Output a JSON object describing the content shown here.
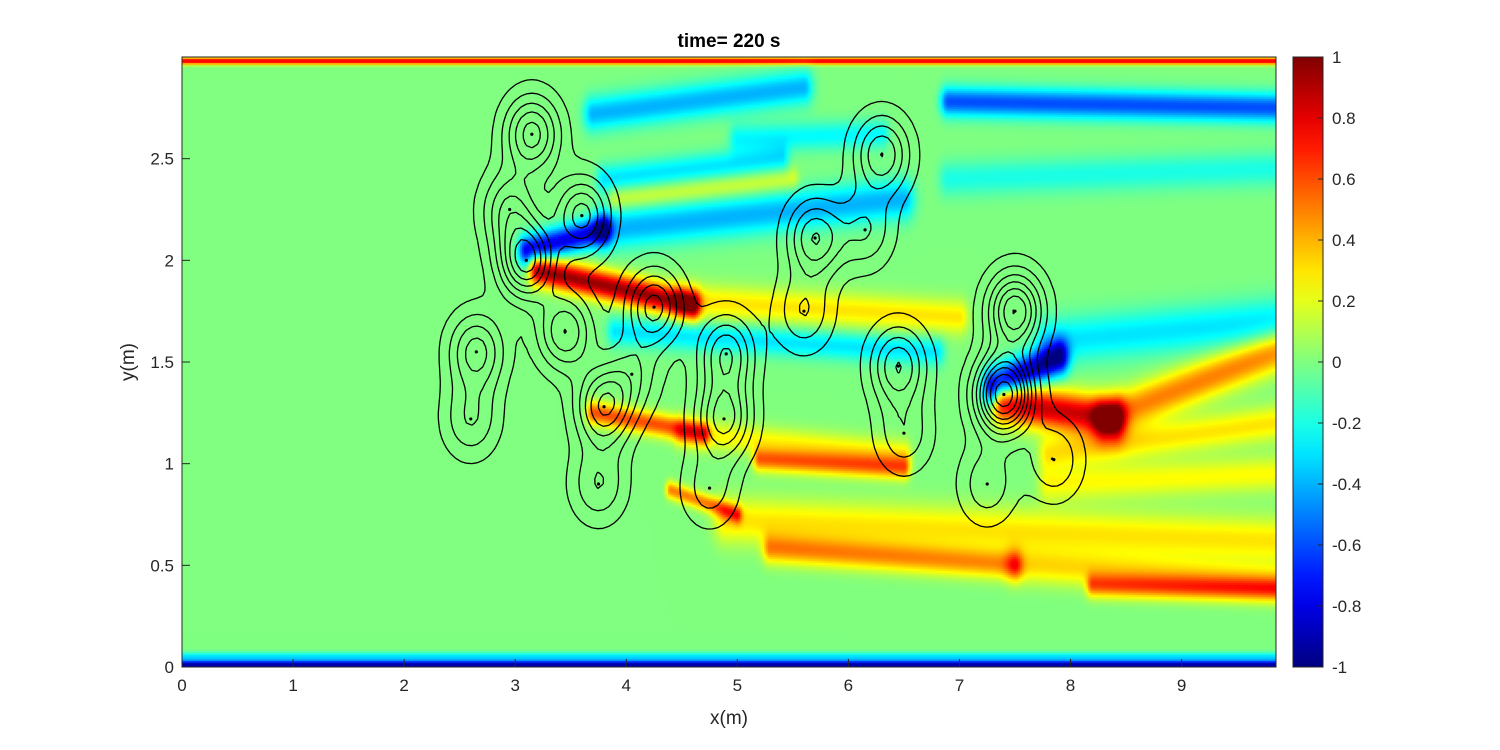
{
  "chart_data": {
    "type": "heatmap",
    "title": "time= 220 s",
    "xlabel": "x(m)",
    "ylabel": "y(m)",
    "xlim": [
      0,
      9.85
    ],
    "ylim": [
      0,
      3.0
    ],
    "xticks": [
      0,
      1,
      2,
      3,
      4,
      5,
      6,
      7,
      8,
      9
    ],
    "yticks": [
      0,
      0.5,
      1,
      1.5,
      2,
      2.5
    ],
    "colorbar": {
      "colormap": "jet",
      "clim": [
        -1,
        1
      ],
      "ticks": [
        -1,
        -0.8,
        -0.6,
        -0.4,
        -0.2,
        0,
        0.2,
        0.4,
        0.6,
        0.8,
        1
      ]
    },
    "background_value": 0,
    "wake_features": [
      {
        "kind": "band",
        "value": -0.4,
        "x0": 3.7,
        "y0": 2.72,
        "x1": 5.6,
        "y1": 2.85,
        "w": 0.06
      },
      {
        "kind": "band",
        "value": -0.25,
        "x0": 5.0,
        "y0": 2.6,
        "x1": 6.3,
        "y1": 2.62,
        "w": 0.05
      },
      {
        "kind": "band",
        "value": -0.3,
        "x0": 3.8,
        "y0": 2.4,
        "x1": 5.4,
        "y1": 2.5,
        "w": 0.05
      },
      {
        "kind": "band",
        "value": -0.6,
        "x0": 6.9,
        "y0": 2.78,
        "x1": 9.85,
        "y1": 2.75,
        "w": 0.05
      },
      {
        "kind": "band",
        "value": -0.2,
        "x0": 6.9,
        "y0": 2.4,
        "x1": 9.85,
        "y1": 2.45,
        "w": 0.06
      },
      {
        "kind": "band",
        "value": -0.8,
        "x0": 3.1,
        "y0": 2.05,
        "x1": 3.8,
        "y1": 2.15,
        "w": 0.05
      },
      {
        "kind": "band",
        "value": -0.4,
        "x0": 3.8,
        "y0": 2.15,
        "x1": 6.5,
        "y1": 2.3,
        "w": 0.07
      },
      {
        "kind": "band",
        "value": 0.2,
        "x0": 3.9,
        "y0": 2.3,
        "x1": 5.5,
        "y1": 2.4,
        "w": 0.04
      },
      {
        "kind": "band",
        "value": 0.95,
        "x0": 3.2,
        "y0": 1.95,
        "x1": 4.6,
        "y1": 1.78,
        "w": 0.05
      },
      {
        "kind": "band",
        "value": 0.3,
        "x0": 4.5,
        "y0": 1.8,
        "x1": 7.0,
        "y1": 1.72,
        "w": 0.06
      },
      {
        "kind": "band",
        "value": -0.3,
        "x0": 3.9,
        "y0": 1.65,
        "x1": 6.8,
        "y1": 1.55,
        "w": 0.05
      },
      {
        "kind": "band",
        "value": 0.6,
        "x0": 3.7,
        "y0": 1.25,
        "x1": 4.7,
        "y1": 1.15,
        "w": 0.04
      },
      {
        "kind": "band",
        "value": 0.25,
        "x0": 4.5,
        "y0": 1.15,
        "x1": 6.5,
        "y1": 1.05,
        "w": 0.05
      },
      {
        "kind": "band",
        "value": 0.55,
        "x0": 5.2,
        "y0": 1.02,
        "x1": 6.5,
        "y1": 0.98,
        "w": 0.04
      },
      {
        "kind": "band",
        "value": 0.5,
        "x0": 4.4,
        "y0": 0.87,
        "x1": 5.0,
        "y1": 0.75,
        "w": 0.03
      },
      {
        "kind": "band",
        "value": 0.3,
        "x0": 4.9,
        "y0": 0.72,
        "x1": 9.85,
        "y1": 0.62,
        "w": 0.08
      },
      {
        "kind": "band",
        "value": 0.45,
        "x0": 5.3,
        "y0": 0.58,
        "x1": 7.5,
        "y1": 0.5,
        "w": 0.05
      },
      {
        "kind": "band",
        "value": 0.3,
        "x0": 7.5,
        "y0": 0.5,
        "x1": 9.85,
        "y1": 0.42,
        "w": 0.06
      },
      {
        "kind": "band",
        "value": 0.5,
        "x0": 8.2,
        "y0": 0.4,
        "x1": 9.85,
        "y1": 0.38,
        "w": 0.04
      },
      {
        "kind": "band",
        "value": -0.9,
        "x0": 7.3,
        "y0": 1.38,
        "x1": 7.9,
        "y1": 1.52,
        "w": 0.06
      },
      {
        "kind": "band",
        "value": -0.3,
        "x0": 7.8,
        "y0": 1.6,
        "x1": 9.85,
        "y1": 1.7,
        "w": 0.08
      },
      {
        "kind": "band",
        "value": 0.85,
        "x0": 7.4,
        "y0": 1.3,
        "x1": 8.4,
        "y1": 1.22,
        "w": 0.07
      },
      {
        "kind": "band",
        "value": 0.5,
        "x0": 8.3,
        "y0": 1.22,
        "x1": 9.85,
        "y1": 1.55,
        "w": 0.07
      },
      {
        "kind": "band",
        "value": 0.3,
        "x0": 7.8,
        "y0": 1.05,
        "x1": 9.85,
        "y1": 1.2,
        "w": 0.06
      },
      {
        "kind": "band",
        "value": 0.25,
        "x0": 7.8,
        "y0": 0.9,
        "x1": 9.85,
        "y1": 0.95,
        "w": 0.06
      },
      {
        "kind": "band",
        "value": 0.8,
        "x0": 0.0,
        "y0": 2.98,
        "x1": 9.85,
        "y1": 2.98,
        "w": 0.012
      },
      {
        "kind": "band",
        "value": -0.95,
        "x0": 0.0,
        "y0": 0.01,
        "x1": 9.85,
        "y1": 0.01,
        "w": 0.015
      },
      {
        "kind": "band",
        "value": -0.3,
        "x0": 0.0,
        "y0": 0.05,
        "x1": 9.85,
        "y1": 0.05,
        "w": 0.015
      }
    ],
    "contour_sources": [
      {
        "x": 3.15,
        "y": 2.62,
        "amp": 1.0
      },
      {
        "x": 2.95,
        "y": 2.25,
        "amp": 0.7
      },
      {
        "x": 3.1,
        "y": 2.0,
        "amp": 1.4
      },
      {
        "x": 3.6,
        "y": 2.22,
        "amp": 1.0
      },
      {
        "x": 4.25,
        "y": 1.77,
        "amp": 1.0
      },
      {
        "x": 3.45,
        "y": 1.65,
        "amp": 0.9
      },
      {
        "x": 2.65,
        "y": 1.55,
        "amp": 0.8
      },
      {
        "x": 3.8,
        "y": 1.28,
        "amp": 1.1
      },
      {
        "x": 4.9,
        "y": 1.54,
        "amp": 0.9
      },
      {
        "x": 4.88,
        "y": 1.22,
        "amp": 1.0
      },
      {
        "x": 5.7,
        "y": 2.11,
        "amp": 0.9
      },
      {
        "x": 6.3,
        "y": 2.52,
        "amp": 0.9
      },
      {
        "x": 6.45,
        "y": 1.48,
        "amp": 0.9
      },
      {
        "x": 7.5,
        "y": 1.75,
        "amp": 1.3
      },
      {
        "x": 7.4,
        "y": 1.34,
        "amp": 2.0
      },
      {
        "x": 5.6,
        "y": 1.75,
        "amp": 0.5
      },
      {
        "x": 6.15,
        "y": 2.15,
        "amp": 0.5
      },
      {
        "x": 2.6,
        "y": 1.22,
        "amp": 0.5
      },
      {
        "x": 4.05,
        "y": 1.44,
        "amp": 0.45
      },
      {
        "x": 3.75,
        "y": 0.9,
        "amp": 0.5
      },
      {
        "x": 4.75,
        "y": 0.88,
        "amp": 0.4
      },
      {
        "x": 7.25,
        "y": 0.9,
        "amp": 0.45
      },
      {
        "x": 7.85,
        "y": 1.02,
        "amp": 0.5
      },
      {
        "x": 6.5,
        "y": 1.15,
        "amp": 0.45
      }
    ]
  }
}
